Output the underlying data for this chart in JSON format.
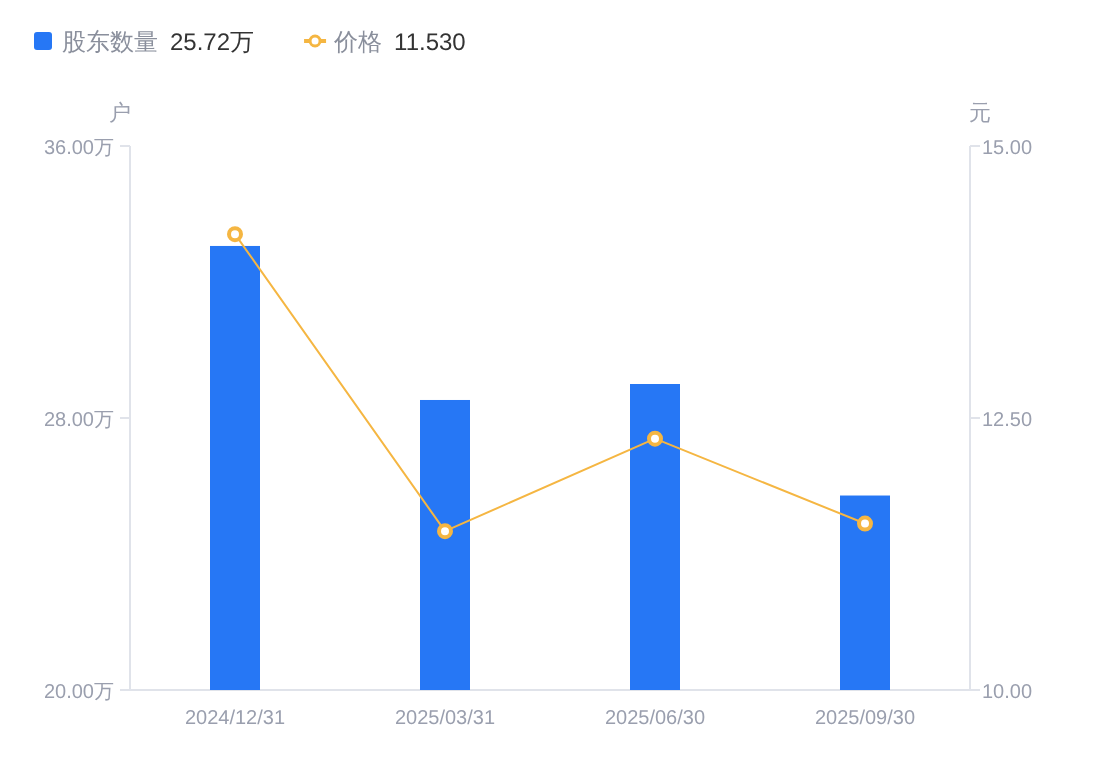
{
  "chart_data": {
    "type": "bar",
    "categories": [
      "2024/12/31",
      "2025/03/31",
      "2025/06/30",
      "2025/09/30"
    ],
    "ylabel": "户",
    "y2label": "元",
    "series": [
      {
        "name": "股东数量",
        "color": "#2677f5",
        "values": [
          33.06,
          28.53,
          29.0,
          25.72
        ]
      },
      {
        "name": "价格",
        "type": "line",
        "axis": "y2",
        "color": "#f5b642",
        "values": [
          14.19,
          11.46,
          12.31,
          11.53
        ]
      }
    ],
    "annotations": [
      "25.72万",
      "11.530"
    ],
    "ylim": [
      20,
      36
    ],
    "yticks": [
      {
        "value": 20,
        "label": "20.00万"
      },
      {
        "value": 28,
        "label": "28.00万"
      },
      {
        "value": 36,
        "label": "36.00万"
      }
    ],
    "y2lim": [
      10,
      15
    ],
    "y2ticks": [
      {
        "value": 10,
        "label": "10.00"
      },
      {
        "value": 12.5,
        "label": "12.50"
      },
      {
        "value": 15,
        "label": "15.00"
      }
    ],
    "legend": "top left",
    "marker": "circle",
    "grid": false
  }
}
